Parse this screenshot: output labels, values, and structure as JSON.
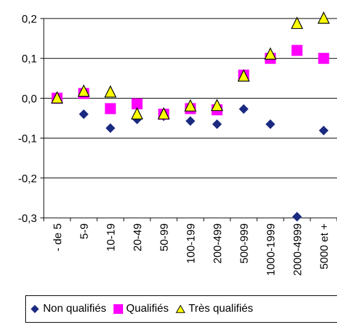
{
  "chart_data": {
    "type": "scatter",
    "categories": [
      "- de 5",
      "5-9",
      "10-19",
      "20-49",
      "50-99",
      "100-199",
      "200-499",
      "500-999",
      "1000-1999",
      "2000-4999",
      "5000 et +"
    ],
    "ylim": [
      -0.3,
      0.2
    ],
    "yticks": [
      -0.3,
      -0.2,
      -0.1,
      0.0,
      0.1,
      0.2
    ],
    "ytick_labels": [
      "-0,3",
      "-0,2",
      "-0,1",
      "0,0",
      "0,1",
      "0,2"
    ],
    "grid": "horizontal",
    "legend_placement": "bottom",
    "series": [
      {
        "name": "Non qualifiés",
        "marker": "diamond",
        "color": "#1a2a80",
        "values": [
          0.0,
          -0.04,
          -0.075,
          -0.053,
          -0.045,
          -0.057,
          -0.065,
          -0.027,
          -0.065,
          -0.297,
          -0.081
        ]
      },
      {
        "name": "Qualifiés",
        "marker": "square",
        "color": "#ff00ff",
        "values": [
          0.0,
          0.012,
          -0.026,
          -0.014,
          -0.04,
          -0.026,
          -0.029,
          0.058,
          0.1,
          0.12,
          0.1
        ]
      },
      {
        "name": "Très qualifiés",
        "marker": "triangle",
        "color": "#ffff00",
        "values": [
          0.0,
          0.017,
          0.015,
          -0.04,
          -0.04,
          -0.02,
          -0.019,
          0.055,
          0.11,
          0.187,
          0.2
        ]
      }
    ]
  }
}
